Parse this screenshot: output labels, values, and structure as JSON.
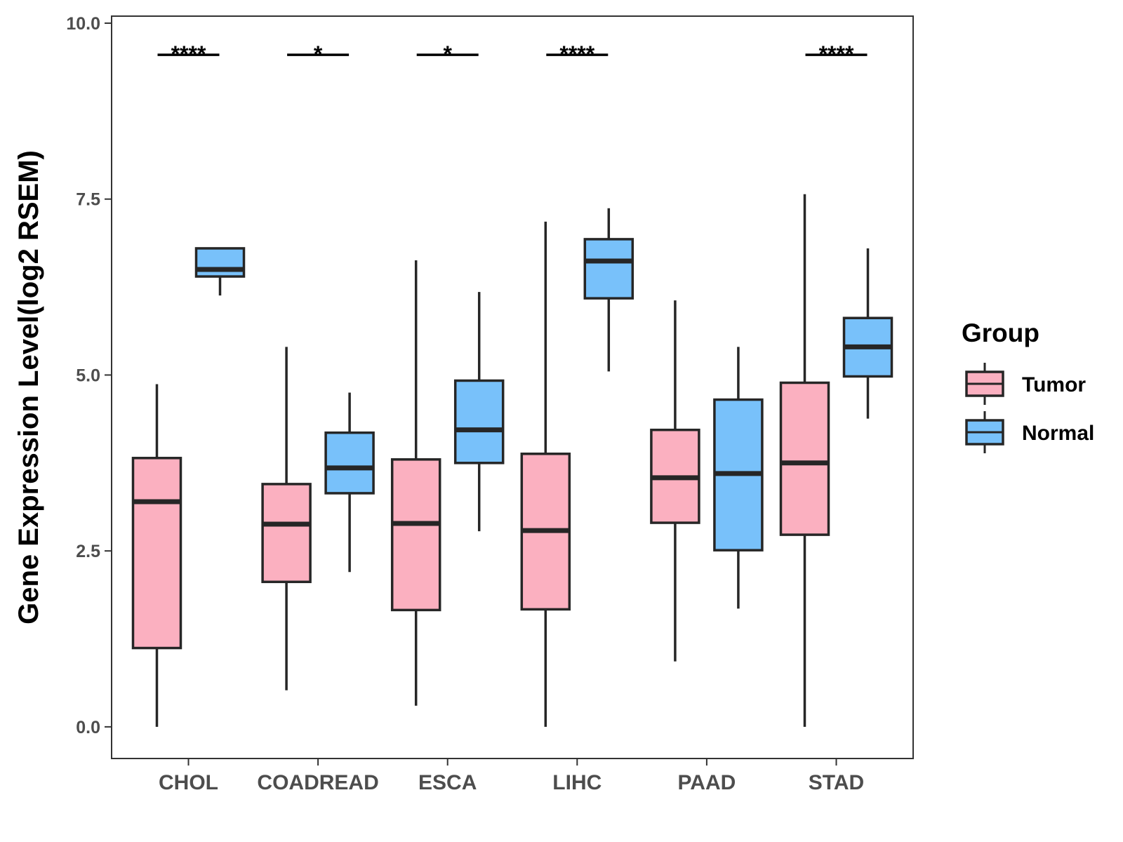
{
  "chart_data": {
    "type": "boxplot",
    "title": "",
    "xlabel": "",
    "ylabel": "Gene Expression Level(log2 RSEM)",
    "ylim": [
      -0.45,
      10.1
    ],
    "yticks": [
      0.0,
      2.5,
      5.0,
      7.5,
      10.0
    ],
    "ytick_labels": [
      "0.0",
      "2.5",
      "5.0",
      "7.5",
      "10.0"
    ],
    "categories": [
      "CHOL",
      "COADREAD",
      "ESCA",
      "LIHC",
      "PAAD",
      "STAD"
    ],
    "legend": {
      "title": "Group",
      "position": "right",
      "entries": [
        "Tumor",
        "Normal"
      ]
    },
    "series": [
      {
        "name": "Tumor",
        "color": "#FBB0C0",
        "boxes": [
          {
            "min": 0.0,
            "q1": 1.12,
            "median": 3.2,
            "q3": 3.82,
            "max": 4.87
          },
          {
            "min": 0.52,
            "q1": 2.06,
            "median": 2.88,
            "q3": 3.45,
            "max": 5.4
          },
          {
            "min": 0.3,
            "q1": 1.66,
            "median": 2.89,
            "q3": 3.8,
            "max": 6.63
          },
          {
            "min": 0.0,
            "q1": 1.67,
            "median": 2.79,
            "q3": 3.88,
            "max": 7.18
          },
          {
            "min": 0.93,
            "q1": 2.9,
            "median": 3.54,
            "q3": 4.22,
            "max": 6.06
          },
          {
            "min": 0.0,
            "q1": 2.73,
            "median": 3.75,
            "q3": 4.89,
            "max": 7.57
          }
        ]
      },
      {
        "name": "Normal",
        "color": "#78C1FA",
        "boxes": [
          {
            "min": 6.13,
            "q1": 6.4,
            "median": 6.5,
            "q3": 6.8,
            "max": 6.8
          },
          {
            "min": 2.2,
            "q1": 3.32,
            "median": 3.68,
            "q3": 4.18,
            "max": 4.75
          },
          {
            "min": 2.78,
            "q1": 3.75,
            "median": 4.22,
            "q3": 4.92,
            "max": 6.18
          },
          {
            "min": 5.05,
            "q1": 6.09,
            "median": 6.62,
            "q3": 6.93,
            "max": 7.37
          },
          {
            "min": 1.68,
            "q1": 2.51,
            "median": 3.6,
            "q3": 4.65,
            "max": 5.4
          },
          {
            "min": 4.38,
            "q1": 4.98,
            "median": 5.4,
            "q3": 5.81,
            "max": 6.8
          }
        ]
      }
    ],
    "significance": [
      {
        "category": "CHOL",
        "label": "****",
        "y": 9.55
      },
      {
        "category": "COADREAD",
        "label": "*",
        "y": 9.55
      },
      {
        "category": "ESCA",
        "label": "*",
        "y": 9.55
      },
      {
        "category": "LIHC",
        "label": "****",
        "y": 9.55
      },
      {
        "category": "STAD",
        "label": "****",
        "y": 9.55
      }
    ]
  }
}
